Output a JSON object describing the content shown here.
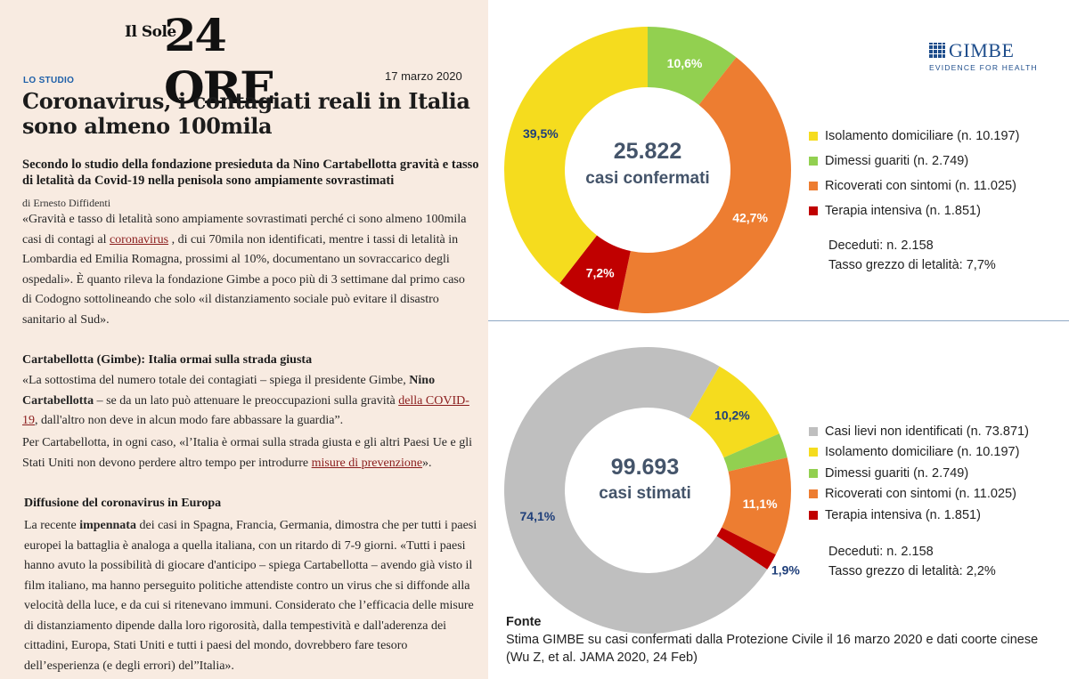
{
  "article": {
    "masthead": {
      "prefix": "Il Sole",
      "brand": "24 ORE"
    },
    "kicker": "LO STUDIO",
    "date": "17 marzo 2020",
    "title": "Coronavirus, i contagiati reali in Italia sono almeno 100mila",
    "subtitle": "Secondo lo studio della fondazione presieduta da Nino Cartabellotta gravità e tasso di letalità da Covid-19 nella penisola sono ampiamente sovrastimati",
    "byline": "di Ernesto Diffidenti",
    "p1": {
      "a": "«Gravità e tasso di letalità sono ampiamente sovrastimati perché ci sono almeno 100mila casi di contagi al ",
      "link": "coronavirus",
      "b": " , di cui 70mila non identificati, mentre i tassi di letalità in Lombardia ed Emilia Romagna, prossimi al 10%, documentano un sovraccarico degli ospedali». È quanto rileva la fondazione Gimbe a poco più di 3 settimane dal primo caso di Codogno sottolineando che solo «il distanziamento sociale può evitare il disastro sanitario al Sud»."
    },
    "section1": "Cartabellotta (Gimbe): Italia ormai sulla strada giusta",
    "p2": {
      "a": "«La sottostima del numero totale dei contagiati – spiega il presidente Gimbe, ",
      "bold": "Nino Cartabellotta",
      "b": " – se da un lato può attenuare le preoccupazioni sulla gravità ",
      "link": "della COVID-19",
      "c": ", dall'altro non deve in alcun modo fare abbassare la guardia”."
    },
    "p3": {
      "a": "Per Cartabellotta, in ogni caso, «l’Italia è ormai sulla strada giusta e gli altri Paesi Ue e gli Stati Uniti non devono perdere altro tempo per introdurre ",
      "link": "misure di prevenzione",
      "b": "»."
    },
    "section2": "Diffusione del coronavirus in Europa",
    "p4": {
      "a": "La recente ",
      "bold": "impennata",
      "b": " dei casi in Spagna, Francia, Germania, dimostra che per tutti i paesi europei la battaglia è analoga a quella italiana, con un ritardo di 7-9 giorni. «Tutti i paesi hanno avuto la possibilità di giocare d'anticipo – spiega Cartabellotta – avendo già visto il film italiano, ma hanno perseguito politiche attendiste contro un virus che si diffonde alla velocità della luce, e da cui si ritenevano immuni. Considerato che l’efficacia delle misure di distanziamento dipende dalla loro rigorosità, dalla tempestività e dall'aderenza dei cittadini, Europa, Stati Uniti e tutti i paesi del mondo, dovrebbero fare tesoro dell’esperienza (e degli errori) del”Italia»."
    }
  },
  "logo": {
    "name": "GIMBE",
    "tagline": "EVIDENCE FOR HEALTH"
  },
  "chart_data": [
    {
      "type": "pie",
      "center": {
        "value": "25.822",
        "label": "casi confermati"
      },
      "series": [
        {
          "name": "Isolamento domiciliare (n. 10.197)",
          "value": 39.5,
          "label": "39,5%",
          "color": "#f5dc1e",
          "labelColor": "#1f3f7a"
        },
        {
          "name": "Dimessi guariti (n. 2.749)",
          "value": 10.6,
          "label": "10,6%",
          "color": "#92d050",
          "labelColor": "#ffffff"
        },
        {
          "name": "Ricoverati con sintomi (n. 11.025)",
          "value": 42.7,
          "label": "42,7%",
          "color": "#ed7d31",
          "labelColor": "#ffffff"
        },
        {
          "name": "Terapia intensiva (n. 1.851)",
          "value": 7.2,
          "label": "7,2%",
          "color": "#c00000",
          "labelColor": "#ffffff"
        }
      ],
      "slice_order": [
        "Dimessi guariti (n. 2.749)",
        "Ricoverati con sintomi (n. 11.025)",
        "Terapia intensiva (n. 1.851)",
        "Isolamento domiciliare (n. 10.197)"
      ],
      "notes": [
        "Deceduti: n. 2.158",
        "Tasso grezzo di letalità: 7,7%"
      ]
    },
    {
      "type": "pie",
      "center": {
        "value": "99.693",
        "label": "casi stimati"
      },
      "series": [
        {
          "name": "Casi lievi non identificati (n. 73.871)",
          "value": 74.1,
          "label": "74,1%",
          "color": "#bfbfbf",
          "labelColor": "#1f3f7a"
        },
        {
          "name": "Isolamento domiciliare (n. 10.197)",
          "value": 10.2,
          "label": "10,2%",
          "color": "#f5dc1e",
          "labelColor": "#1f3f7a"
        },
        {
          "name": "Dimessi guariti (n. 2.749)",
          "value": 2.8,
          "label": "2,8%",
          "color": "#92d050",
          "labelColor": "#ffffff"
        },
        {
          "name": "Ricoverati con sintomi (n. 11.025)",
          "value": 11.1,
          "label": "11,1%",
          "color": "#ed7d31",
          "labelColor": "#ffffff"
        },
        {
          "name": "Terapia intensiva (n. 1.851)",
          "value": 1.9,
          "label": "1,9%",
          "color": "#c00000",
          "labelColor": "#1f3f7a"
        }
      ],
      "slice_order": [
        "Isolamento domiciliare (n. 10.197)",
        "Dimessi guariti (n. 2.749)",
        "Ricoverati con sintomi (n. 11.025)",
        "Terapia intensiva (n. 1.851)",
        "Casi lievi non identificati (n. 73.871)"
      ],
      "notes": [
        "Deceduti: n. 2.158",
        "Tasso grezzo di letalità: 2,2%"
      ]
    }
  ],
  "source": {
    "heading": "Fonte",
    "text": "Stima GIMBE su casi confermati dalla Protezione Civile il 16 marzo 2020 e dati coorte cinese (Wu Z, et al. JAMA 2020, 24 Feb)"
  }
}
